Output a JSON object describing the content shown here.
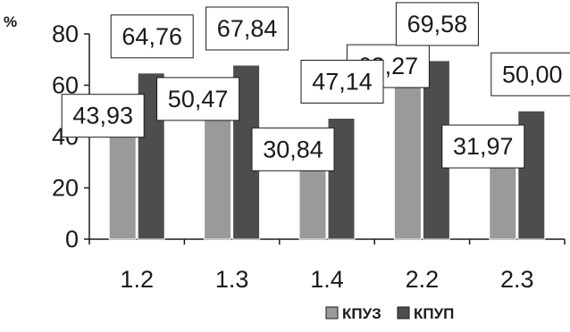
{
  "chart_data": {
    "type": "bar",
    "unit_label": "%",
    "categories": [
      "1.2",
      "1.3",
      "1.4",
      "2.2",
      "2.3"
    ],
    "series": [
      {
        "name": "КПУЗ",
        "color": "#9a9a9a",
        "values": [
          43.93,
          50.47,
          30.84,
          63.27,
          31.97
        ],
        "labels": [
          "43,93",
          "50,47",
          "30,84",
          "63,27",
          "31,97"
        ]
      },
      {
        "name": "КПУП",
        "color": "#4d4d4d",
        "values": [
          64.76,
          67.84,
          47.14,
          69.58,
          50.0
        ],
        "labels": [
          "64,76",
          "67,84",
          "47,14",
          "69,58",
          "50,00"
        ]
      }
    ],
    "y_ticks": [
      "0",
      "20",
      "40",
      "60",
      "80"
    ],
    "ylim": [
      0,
      80
    ],
    "grid": false,
    "legend_position": "bottom-right"
  }
}
